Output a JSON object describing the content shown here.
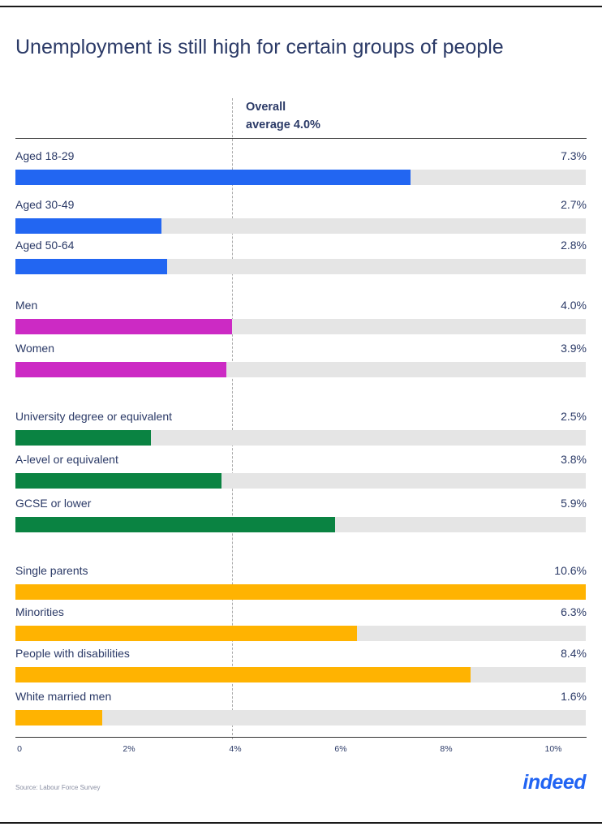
{
  "chart_data": {
    "type": "bar",
    "orientation": "horizontal",
    "title": "Unemployment is still high for certain groups of people",
    "reference_line": {
      "value": 4.0,
      "label_line1": "Overall",
      "label_line2": "average 4.0%"
    },
    "xlim": [
      0,
      10.8
    ],
    "xticks": [
      {
        "value": 0,
        "label": "0"
      },
      {
        "value": 2,
        "label": "2%"
      },
      {
        "value": 4,
        "label": "4%"
      },
      {
        "value": 6,
        "label": "6%"
      },
      {
        "value": 8,
        "label": "8%"
      },
      {
        "value": 10,
        "label": "10%"
      }
    ],
    "groups": [
      {
        "color": "#2266f2",
        "items": [
          {
            "label": "Aged 18-29",
            "value": 7.3,
            "display": "7.3%"
          },
          {
            "label": "Aged 30-49",
            "value": 2.7,
            "display": "2.7%"
          },
          {
            "label": "Aged 50-64",
            "value": 2.8,
            "display": "2.8%"
          }
        ]
      },
      {
        "color": "#cc2ac4",
        "items": [
          {
            "label": "Men",
            "value": 4.0,
            "display": "4.0%"
          },
          {
            "label": "Women",
            "value": 3.9,
            "display": "3.9%"
          }
        ]
      },
      {
        "color": "#0a8342",
        "items": [
          {
            "label": "University degree or equivalent",
            "value": 2.5,
            "display": "2.5%"
          },
          {
            "label": "A-level or equivalent",
            "value": 3.8,
            "display": "3.8%"
          },
          {
            "label": "GCSE or lower",
            "value": 5.9,
            "display": "5.9%"
          }
        ]
      },
      {
        "color": "#ffb301",
        "items": [
          {
            "label": "Single parents",
            "value": 10.6,
            "display": "10.6%"
          },
          {
            "label": "Minorities",
            "value": 6.3,
            "display": "6.3%"
          },
          {
            "label": "People with disabilities",
            "value": 8.4,
            "display": "8.4%"
          },
          {
            "label": "White married men",
            "value": 1.6,
            "display": "1.6%"
          }
        ]
      }
    ],
    "track_color": "#e5e5e5"
  },
  "footer": {
    "source": "Source: Labour Force Survey",
    "logo": "indeed"
  }
}
